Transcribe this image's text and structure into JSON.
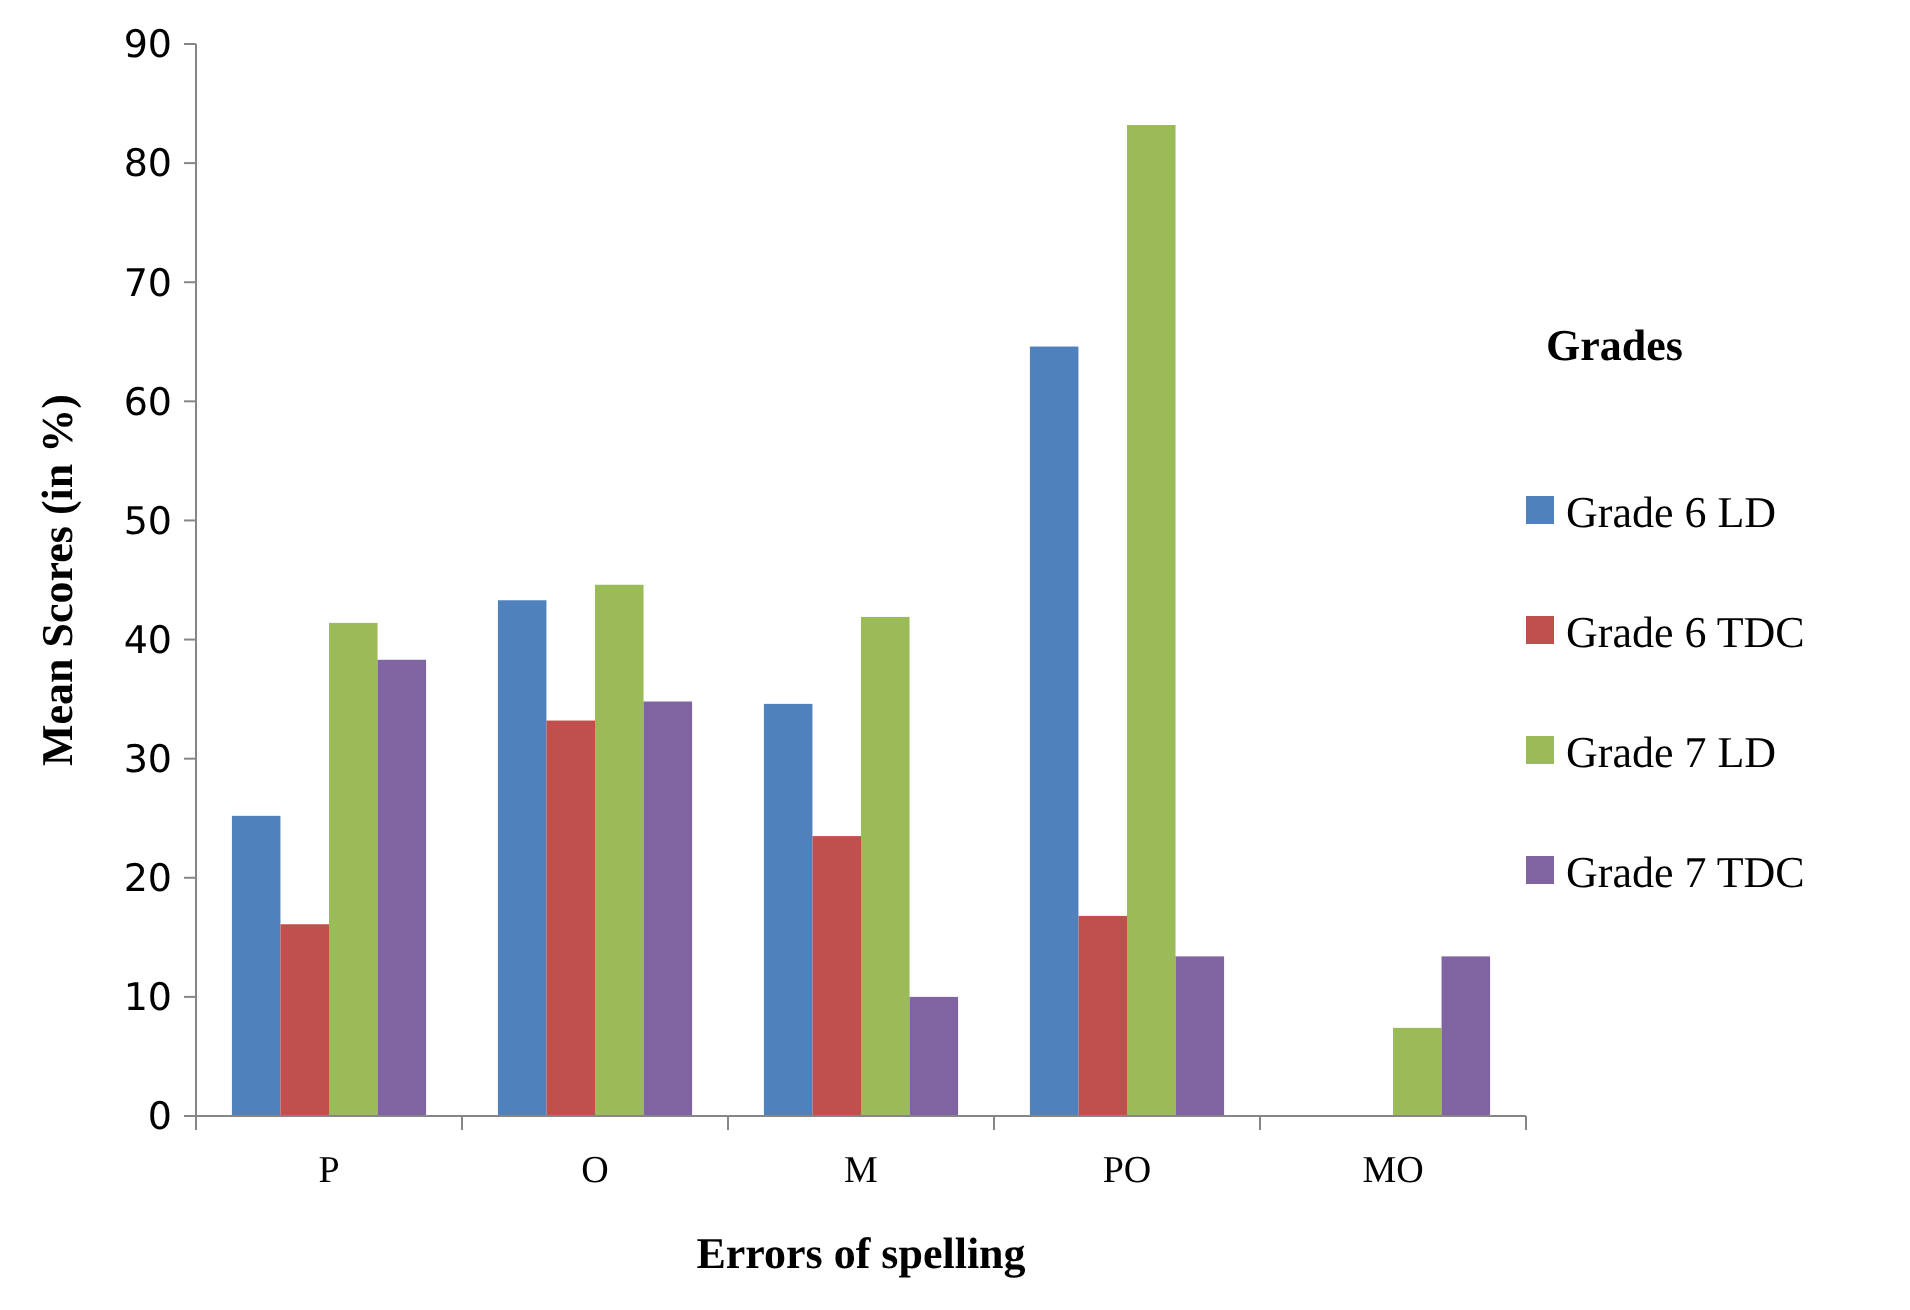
{
  "chart_data": {
    "type": "bar",
    "xlabel": "Errors of spelling",
    "ylabel": "Mean Scores (in %)",
    "legend_title": "Grades",
    "categories": [
      "P",
      "O",
      "M",
      "PO",
      "MO"
    ],
    "series": [
      {
        "name": "Grade 6 LD",
        "color": "#4f81bd",
        "values": [
          25.2,
          43.3,
          34.6,
          64.6,
          0
        ]
      },
      {
        "name": "Grade 6 TDC",
        "color": "#c0504d",
        "values": [
          16.1,
          33.2,
          23.5,
          16.8,
          0
        ]
      },
      {
        "name": "Grade 7 LD",
        "color": "#9bbb59",
        "values": [
          41.4,
          44.6,
          41.9,
          83.2,
          7.4
        ]
      },
      {
        "name": "Grade 7 TDC",
        "color": "#8064a2",
        "values": [
          38.3,
          34.8,
          10.0,
          13.4,
          13.4
        ]
      }
    ],
    "ylim": [
      0,
      90
    ],
    "yticks": [
      0,
      10,
      20,
      30,
      40,
      50,
      60,
      70,
      80,
      90
    ],
    "grid": false,
    "legend": "right"
  }
}
